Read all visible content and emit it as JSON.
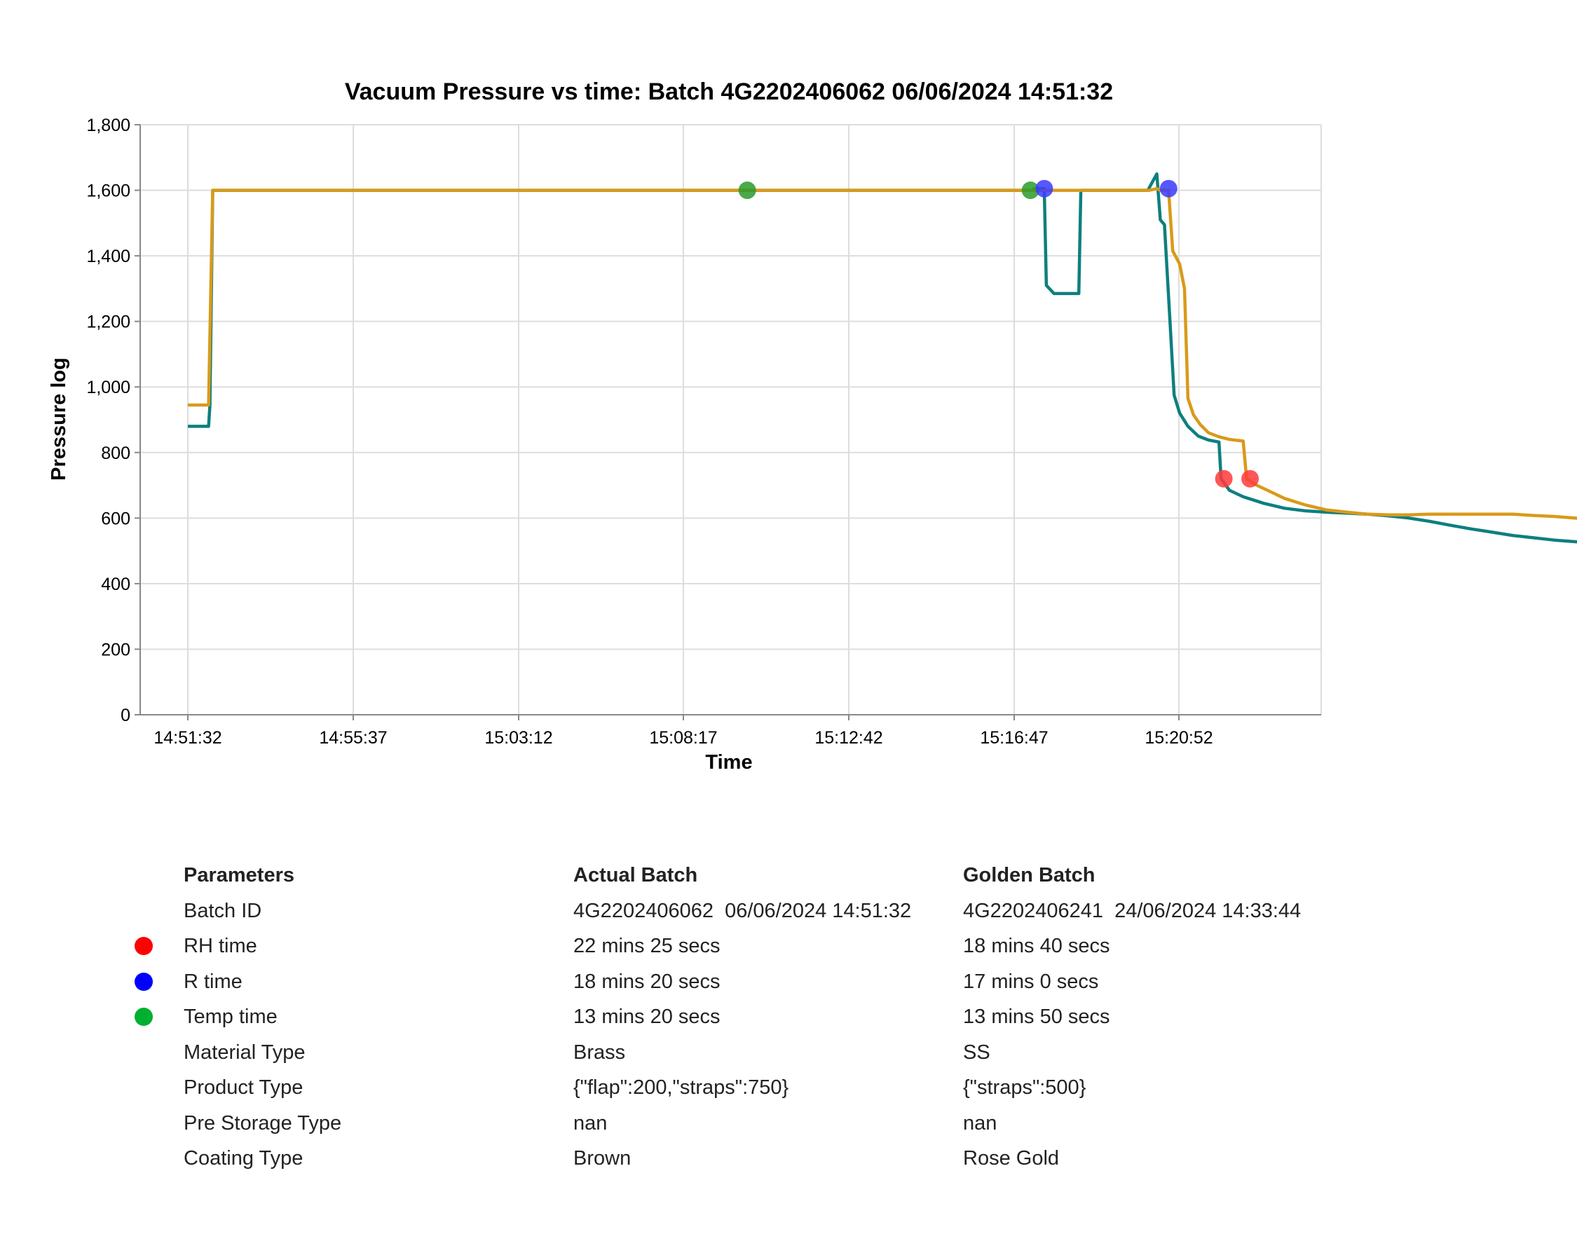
{
  "chart_data": {
    "type": "line",
    "title": "Vacuum Pressure vs time: Batch 4G2202406062 06/06/2024 14:51:32",
    "xlabel": "Time",
    "ylabel": "Pressure log",
    "xlim": [
      "14:51:32",
      "15:27:06"
    ],
    "ylim": [
      0,
      1800
    ],
    "x_ticks": [
      "14:51:32",
      "14:55:37",
      "15:03:12",
      "15:08:17",
      "15:12:42",
      "15:16:47",
      "15:20:52"
    ],
    "y_ticks": [
      "0",
      "200",
      "400",
      "600",
      "800",
      "1,000",
      "1,200",
      "1,400",
      "1,600",
      "1,800"
    ],
    "grid": true,
    "series": [
      {
        "color": "#0e7f7f",
        "points": [
          [
            "14:51:32",
            880
          ],
          [
            "14:52:02",
            880
          ],
          [
            "14:52:04",
            945
          ],
          [
            "14:52:08",
            1600
          ],
          [
            "15:11:52",
            1600
          ],
          [
            "15:12:02",
            1605
          ],
          [
            "15:12:12",
            1605
          ],
          [
            "15:12:15",
            1310
          ],
          [
            "15:12:26",
            1285
          ],
          [
            "15:13:02",
            1285
          ],
          [
            "15:13:05",
            1600
          ],
          [
            "15:14:42",
            1600
          ],
          [
            "15:14:55",
            1650
          ],
          [
            "15:15:00",
            1510
          ],
          [
            "15:15:06",
            1495
          ],
          [
            "15:15:14",
            1200
          ],
          [
            "15:15:20",
            975
          ],
          [
            "15:15:28",
            920
          ],
          [
            "15:15:40",
            880
          ],
          [
            "15:15:55",
            850
          ],
          [
            "15:16:10",
            838
          ],
          [
            "15:16:25",
            832
          ],
          [
            "15:16:28",
            720
          ],
          [
            "15:16:40",
            685
          ],
          [
            "15:17:00",
            665
          ],
          [
            "15:17:30",
            645
          ],
          [
            "15:18:00",
            630
          ],
          [
            "15:18:30",
            622
          ],
          [
            "15:19:00",
            618
          ],
          [
            "15:19:30",
            615
          ],
          [
            "15:20:00",
            612
          ],
          [
            "15:20:30",
            607
          ],
          [
            "15:21:00",
            600
          ],
          [
            "15:21:30",
            590
          ],
          [
            "15:22:00",
            578
          ],
          [
            "15:22:30",
            567
          ],
          [
            "15:23:00",
            557
          ],
          [
            "15:23:30",
            547
          ],
          [
            "15:24:00",
            540
          ],
          [
            "15:24:30",
            533
          ],
          [
            "15:25:00",
            528
          ],
          [
            "15:25:32",
            522
          ]
        ]
      },
      {
        "color": "#d99a1a",
        "points": [
          [
            "14:51:32",
            945
          ],
          [
            "14:52:02",
            945
          ],
          [
            "14:52:08",
            1600
          ],
          [
            "15:14:44",
            1600
          ],
          [
            "15:14:55",
            1605
          ],
          [
            "15:15:00",
            1600
          ],
          [
            "15:15:12",
            1600
          ],
          [
            "15:15:18",
            1415
          ],
          [
            "15:15:28",
            1375
          ],
          [
            "15:15:35",
            1300
          ],
          [
            "15:15:40",
            965
          ],
          [
            "15:15:48",
            915
          ],
          [
            "15:15:58",
            885
          ],
          [
            "15:16:10",
            860
          ],
          [
            "15:16:25",
            848
          ],
          [
            "15:16:40",
            840
          ],
          [
            "15:17:00",
            835
          ],
          [
            "15:17:05",
            720
          ],
          [
            "15:17:20",
            700
          ],
          [
            "15:17:40",
            680
          ],
          [
            "15:18:00",
            660
          ],
          [
            "15:18:30",
            640
          ],
          [
            "15:19:00",
            625
          ],
          [
            "15:19:30",
            618
          ],
          [
            "15:20:00",
            612
          ],
          [
            "15:20:30",
            610
          ],
          [
            "15:21:00",
            610
          ],
          [
            "15:21:30",
            612
          ],
          [
            "15:22:00",
            612
          ],
          [
            "15:22:30",
            612
          ],
          [
            "15:23:00",
            612
          ],
          [
            "15:23:30",
            612
          ],
          [
            "15:24:00",
            608
          ],
          [
            "15:24:30",
            605
          ],
          [
            "15:25:00",
            600
          ],
          [
            "15:25:32",
            593
          ]
        ]
      }
    ],
    "markers": [
      {
        "x": "15:05:02",
        "y": 1600,
        "color": "#2a9a2a"
      },
      {
        "x": "15:11:52",
        "y": 1600,
        "color": "#2a9a2a"
      },
      {
        "x": "15:12:12",
        "y": 1605,
        "color": "#3a3aff"
      },
      {
        "x": "15:15:12",
        "y": 1605,
        "color": "#3a3aff"
      },
      {
        "x": "15:16:32",
        "y": 720,
        "color": "#ff3a3a"
      },
      {
        "x": "15:17:10",
        "y": 720,
        "color": "#ff3a3a"
      }
    ]
  },
  "table": {
    "headers": [
      "Parameters",
      "Actual Batch",
      "Golden Batch"
    ],
    "rows": [
      {
        "label": "Batch ID",
        "actual": "4G2202406062  06/06/2024 14:51:32",
        "golden": "4G2202406241  24/06/2024 14:33:44",
        "dot": null
      },
      {
        "label": "RH time",
        "actual": "22 mins 25 secs",
        "golden": "18 mins 40 secs",
        "dot": "#ff0000"
      },
      {
        "label": "R time",
        "actual": "18 mins 20 secs",
        "golden": "17 mins 0 secs",
        "dot": "#0000ff"
      },
      {
        "label": "Temp time",
        "actual": "13 mins 20 secs",
        "golden": "13 mins 50 secs",
        "dot": "#00b030"
      },
      {
        "label": "Material Type",
        "actual": "Brass",
        "golden": "SS",
        "dot": null
      },
      {
        "label": "Product Type",
        "actual": "{\"flap\":200,\"straps\":750}",
        "golden": "{\"straps\":500}",
        "dot": null
      },
      {
        "label": "Pre Storage Type",
        "actual": "nan",
        "golden": "nan",
        "dot": null
      },
      {
        "label": "Coating Type",
        "actual": "Brown",
        "golden": "Rose Gold",
        "dot": null
      }
    ]
  }
}
